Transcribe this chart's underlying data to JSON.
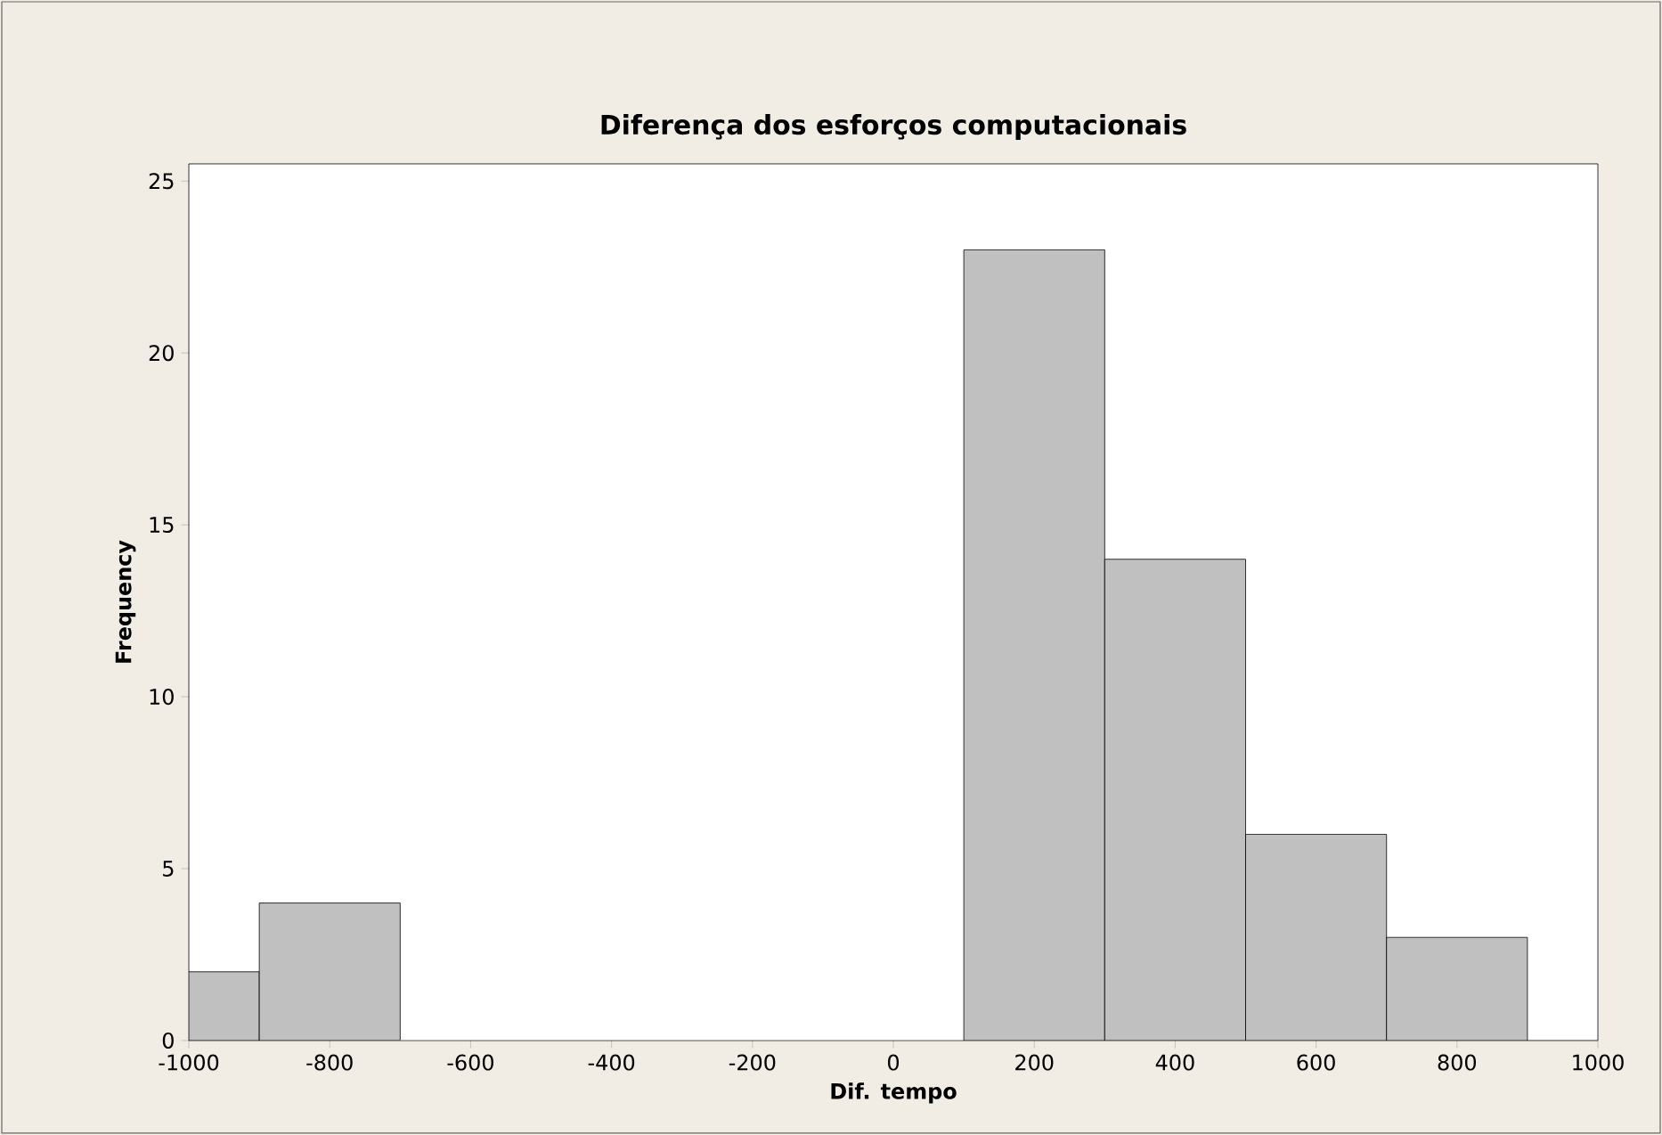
{
  "chart_data": {
    "type": "histogram",
    "title": "Diferença dos esforços computacionais",
    "xlabel": "Dif. tempo",
    "ylabel": "Frequency",
    "bins": [
      -1000,
      -900,
      -700,
      100,
      300,
      500,
      700,
      900
    ],
    "values": [
      2,
      4,
      0,
      23,
      14,
      6,
      3
    ],
    "color": "#c0c0c0",
    "xlim": [
      -1000,
      1000
    ],
    "xticks": [
      -1000,
      -800,
      -600,
      -400,
      -200,
      0,
      200,
      400,
      600,
      800,
      1000
    ],
    "ylim": [
      0,
      25.5
    ],
    "yticks": [
      0,
      5,
      10,
      15,
      20,
      25
    ]
  }
}
